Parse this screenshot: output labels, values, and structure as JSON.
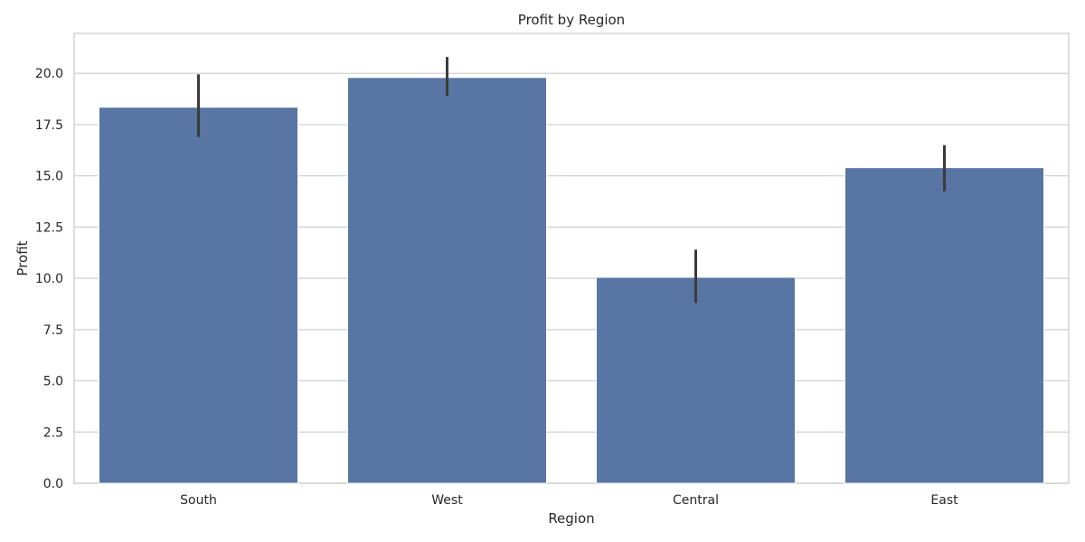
{
  "chart_data": {
    "type": "bar",
    "title": "Profit by Region",
    "xlabel": "Region",
    "ylabel": "Profit",
    "categories": [
      "South",
      "West",
      "Central",
      "East"
    ],
    "values": [
      18.35,
      19.8,
      10.05,
      15.4
    ],
    "error_bars": [
      [
        16.9,
        19.95
      ],
      [
        18.9,
        20.8
      ],
      [
        8.8,
        11.4
      ],
      [
        14.25,
        16.5
      ]
    ],
    "ylim": [
      0,
      21.95
    ],
    "yticks": [
      "0.0",
      "2.5",
      "5.0",
      "7.5",
      "10.0",
      "12.5",
      "15.0",
      "17.5",
      "20.0"
    ],
    "ytick_values": [
      0,
      2.5,
      5,
      7.5,
      10,
      12.5,
      15,
      17.5,
      20
    ],
    "grid": true,
    "bar_color": "#5975a4",
    "error_color": "#3b3b3b",
    "grid_color": "#cfcfcf"
  }
}
